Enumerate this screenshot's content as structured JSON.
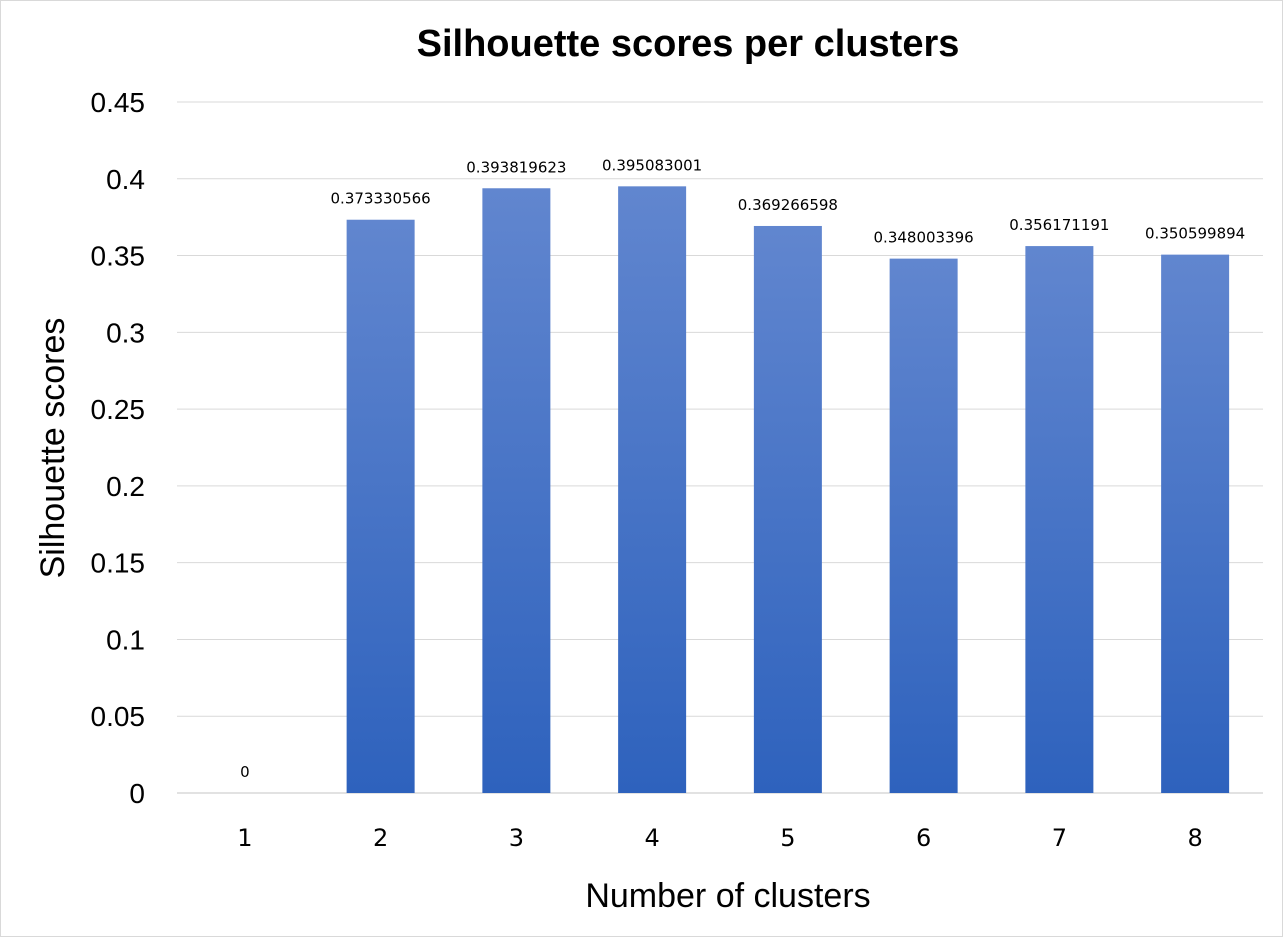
{
  "chart_data": {
    "type": "bar",
    "title": "Silhouette scores per clusters",
    "xlabel": "Number of clusters",
    "ylabel": "Silhouette scores",
    "categories": [
      "1",
      "2",
      "3",
      "4",
      "5",
      "6",
      "7",
      "8"
    ],
    "values": [
      0,
      0.373330566,
      0.393819623,
      0.395083001,
      0.369266598,
      0.348003396,
      0.356171191,
      0.350599894
    ],
    "data_labels": [
      "0",
      "0.373330566",
      "0.393819623",
      "0.395083001",
      "0.369266598",
      "0.348003396",
      "0.356171191",
      "0.350599894"
    ],
    "ylim": [
      0,
      0.45
    ],
    "yticks": [
      "0",
      "0.05",
      "0.1",
      "0.15",
      "0.2",
      "0.25",
      "0.3",
      "0.35",
      "0.4",
      "0.45"
    ],
    "grid": true,
    "legend": "none",
    "colors": {
      "bar_top": "#6186cf",
      "bar_bottom": "#2e62bd",
      "grid": "#d9d9d9"
    }
  }
}
